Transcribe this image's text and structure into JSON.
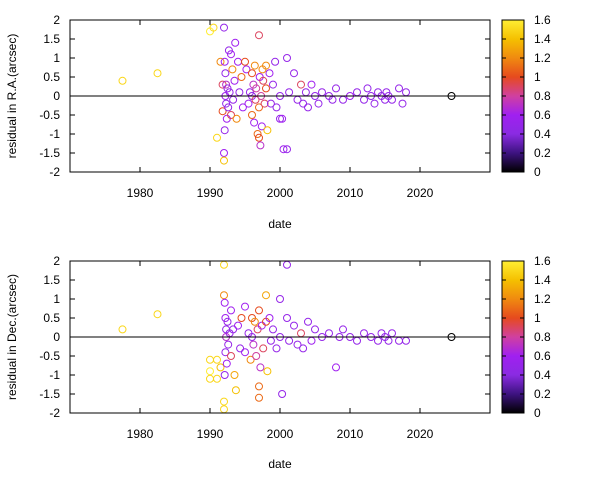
{
  "chart_data": [
    {
      "type": "scatter",
      "title": "",
      "xlabel": "date",
      "ylabel": "residual in R.A.(arcsec)",
      "xlim": [
        1970,
        2030
      ],
      "ylim": [
        -2,
        2
      ],
      "x_ticks": [
        1980,
        1990,
        2000,
        2010,
        2020
      ],
      "y_ticks": [
        -2,
        -1.5,
        -1,
        -0.5,
        0,
        0.5,
        1,
        1.5,
        2
      ],
      "zero_line": true,
      "colorbar": {
        "min": 0,
        "max": 1.6,
        "ticks": [
          0,
          0.2,
          0.4,
          0.6,
          0.8,
          1,
          1.2,
          1.4,
          1.6
        ],
        "stops": [
          "#000000",
          "#3d1380",
          "#8a2be2",
          "#a020f0",
          "#d040a0",
          "#e64a1e",
          "#f08a10",
          "#f5c000",
          "#ffee33"
        ]
      },
      "points": [
        {
          "x": 1977.5,
          "y": 0.4,
          "c": 1.5
        },
        {
          "x": 1982.5,
          "y": 0.6,
          "c": 1.5
        },
        {
          "x": 1990.0,
          "y": 1.7,
          "c": 1.6
        },
        {
          "x": 1990.5,
          "y": 1.8,
          "c": 1.5
        },
        {
          "x": 1991.0,
          "y": -1.1,
          "c": 1.5
        },
        {
          "x": 1991.5,
          "y": 0.9,
          "c": 1.2
        },
        {
          "x": 1991.8,
          "y": 0.3,
          "c": 0.9
        },
        {
          "x": 1991.8,
          "y": -0.4,
          "c": 1.0
        },
        {
          "x": 1992.0,
          "y": 1.8,
          "c": 0.5
        },
        {
          "x": 1992.0,
          "y": -1.5,
          "c": 0.6
        },
        {
          "x": 1992.0,
          "y": -1.7,
          "c": 1.4
        },
        {
          "x": 1992.1,
          "y": 0.9,
          "c": 0.6
        },
        {
          "x": 1992.1,
          "y": -0.9,
          "c": 0.5
        },
        {
          "x": 1992.2,
          "y": 0.6,
          "c": 0.5
        },
        {
          "x": 1992.2,
          "y": 0.0,
          "c": 0.6
        },
        {
          "x": 1992.3,
          "y": -0.2,
          "c": 0.5
        },
        {
          "x": 1992.3,
          "y": 0.3,
          "c": 0.7
        },
        {
          "x": 1992.4,
          "y": -0.6,
          "c": 0.6
        },
        {
          "x": 1992.5,
          "y": 0.2,
          "c": 0.5
        },
        {
          "x": 1992.6,
          "y": -0.3,
          "c": 0.5
        },
        {
          "x": 1992.7,
          "y": 1.2,
          "c": 0.5
        },
        {
          "x": 1992.8,
          "y": 0.1,
          "c": 0.5
        },
        {
          "x": 1993.0,
          "y": 1.1,
          "c": 0.6
        },
        {
          "x": 1993.0,
          "y": -0.5,
          "c": 0.9
        },
        {
          "x": 1993.2,
          "y": 0.7,
          "c": 1.2
        },
        {
          "x": 1993.3,
          "y": -0.1,
          "c": 0.5
        },
        {
          "x": 1993.5,
          "y": 0.4,
          "c": 0.6
        },
        {
          "x": 1993.6,
          "y": 1.4,
          "c": 0.6
        },
        {
          "x": 1993.8,
          "y": -0.6,
          "c": 1.2
        },
        {
          "x": 1994.0,
          "y": 0.9,
          "c": 0.6
        },
        {
          "x": 1994.2,
          "y": 0.1,
          "c": 0.5
        },
        {
          "x": 1994.5,
          "y": 0.5,
          "c": 1.1
        },
        {
          "x": 1994.7,
          "y": -0.3,
          "c": 0.6
        },
        {
          "x": 1995.0,
          "y": 0.9,
          "c": 1.0
        },
        {
          "x": 1995.2,
          "y": 0.7,
          "c": 0.6
        },
        {
          "x": 1995.5,
          "y": -0.2,
          "c": 0.6
        },
        {
          "x": 1995.7,
          "y": 0.1,
          "c": 0.5
        },
        {
          "x": 1996.0,
          "y": 0.6,
          "c": 1.0
        },
        {
          "x": 1996.0,
          "y": -0.5,
          "c": 1.1
        },
        {
          "x": 1996.0,
          "y": 0.0,
          "c": 0.5
        },
        {
          "x": 1996.2,
          "y": 0.3,
          "c": 0.7
        },
        {
          "x": 1996.3,
          "y": -0.7,
          "c": 0.6
        },
        {
          "x": 1996.4,
          "y": 0.8,
          "c": 1.2
        },
        {
          "x": 1996.5,
          "y": -0.1,
          "c": 0.9
        },
        {
          "x": 1996.6,
          "y": 0.2,
          "c": 0.8
        },
        {
          "x": 1996.8,
          "y": -1.0,
          "c": 1.1
        },
        {
          "x": 1997.0,
          "y": 1.6,
          "c": 0.9
        },
        {
          "x": 1997.0,
          "y": -0.3,
          "c": 1.1
        },
        {
          "x": 1997.0,
          "y": -1.1,
          "c": 1.0
        },
        {
          "x": 1997.1,
          "y": 0.5,
          "c": 0.6
        },
        {
          "x": 1997.2,
          "y": -1.3,
          "c": 0.7
        },
        {
          "x": 1997.3,
          "y": 0.0,
          "c": 0.8
        },
        {
          "x": 1997.4,
          "y": -0.8,
          "c": 0.6
        },
        {
          "x": 1997.5,
          "y": 0.7,
          "c": 1.2
        },
        {
          "x": 1997.6,
          "y": 0.4,
          "c": 0.9
        },
        {
          "x": 1997.8,
          "y": -0.2,
          "c": 0.9
        },
        {
          "x": 1998.0,
          "y": 0.8,
          "c": 1.2
        },
        {
          "x": 1998.0,
          "y": 0.2,
          "c": 1.0
        },
        {
          "x": 1998.2,
          "y": -0.9,
          "c": 1.4
        },
        {
          "x": 1998.5,
          "y": 0.6,
          "c": 0.6
        },
        {
          "x": 1998.7,
          "y": -0.2,
          "c": 0.5
        },
        {
          "x": 1999.0,
          "y": 0.3,
          "c": 0.5
        },
        {
          "x": 1999.3,
          "y": 0.9,
          "c": 0.5
        },
        {
          "x": 1999.5,
          "y": -0.3,
          "c": 0.5
        },
        {
          "x": 2000.0,
          "y": 0.0,
          "c": 0.5
        },
        {
          "x": 2000.0,
          "y": -0.6,
          "c": 0.5
        },
        {
          "x": 2000.3,
          "y": -0.6,
          "c": 0.6
        },
        {
          "x": 2000.5,
          "y": -1.4,
          "c": 0.6
        },
        {
          "x": 2001.0,
          "y": 1.0,
          "c": 0.5
        },
        {
          "x": 2001.0,
          "y": -1.4,
          "c": 0.5
        },
        {
          "x": 2001.3,
          "y": 0.1,
          "c": 0.5
        },
        {
          "x": 2002.0,
          "y": 0.6,
          "c": 0.5
        },
        {
          "x": 2002.5,
          "y": -0.1,
          "c": 0.5
        },
        {
          "x": 2003.0,
          "y": 0.3,
          "c": 0.9
        },
        {
          "x": 2003.3,
          "y": -0.2,
          "c": 0.5
        },
        {
          "x": 2003.7,
          "y": 0.1,
          "c": 0.5
        },
        {
          "x": 2004.0,
          "y": -0.3,
          "c": 0.5
        },
        {
          "x": 2004.5,
          "y": 0.3,
          "c": 0.6
        },
        {
          "x": 2005.0,
          "y": 0.0,
          "c": 0.5
        },
        {
          "x": 2005.5,
          "y": -0.2,
          "c": 0.5
        },
        {
          "x": 2006.0,
          "y": 0.1,
          "c": 0.5
        },
        {
          "x": 2007.0,
          "y": 0.0,
          "c": 0.5
        },
        {
          "x": 2007.5,
          "y": -0.1,
          "c": 0.5
        },
        {
          "x": 2008.0,
          "y": 0.2,
          "c": 0.5
        },
        {
          "x": 2009.0,
          "y": -0.1,
          "c": 0.5
        },
        {
          "x": 2010.0,
          "y": 0.0,
          "c": 0.6
        },
        {
          "x": 2011.0,
          "y": 0.1,
          "c": 0.5
        },
        {
          "x": 2012.0,
          "y": -0.1,
          "c": 0.5
        },
        {
          "x": 2012.5,
          "y": 0.2,
          "c": 0.5
        },
        {
          "x": 2013.0,
          "y": 0.0,
          "c": 0.5
        },
        {
          "x": 2013.5,
          "y": -0.2,
          "c": 0.5
        },
        {
          "x": 2014.0,
          "y": 0.1,
          "c": 0.5
        },
        {
          "x": 2014.5,
          "y": 0.0,
          "c": 0.5
        },
        {
          "x": 2015.0,
          "y": -0.1,
          "c": 0.5
        },
        {
          "x": 2015.2,
          "y": 0.1,
          "c": 0.5
        },
        {
          "x": 2015.5,
          "y": 0.0,
          "c": 0.5
        },
        {
          "x": 2016.0,
          "y": -0.1,
          "c": 0.5
        },
        {
          "x": 2017.0,
          "y": 0.2,
          "c": 0.5
        },
        {
          "x": 2017.5,
          "y": -0.2,
          "c": 0.5
        },
        {
          "x": 2018.0,
          "y": 0.1,
          "c": 0.5
        },
        {
          "x": 2024.5,
          "y": 0.0,
          "c": 0.0
        }
      ]
    },
    {
      "type": "scatter",
      "title": "",
      "xlabel": "date",
      "ylabel": "residual in Dec.(arcsec)",
      "xlim": [
        1970,
        2030
      ],
      "ylim": [
        -2,
        2
      ],
      "x_ticks": [
        1980,
        1990,
        2000,
        2010,
        2020
      ],
      "y_ticks": [
        -2,
        -1.5,
        -1,
        -0.5,
        0,
        0.5,
        1,
        1.5,
        2
      ],
      "zero_line": true,
      "colorbar": {
        "min": 0,
        "max": 1.6,
        "ticks": [
          0,
          0.2,
          0.4,
          0.6,
          0.8,
          1,
          1.2,
          1.4,
          1.6
        ],
        "stops": [
          "#000000",
          "#3d1380",
          "#8a2be2",
          "#a020f0",
          "#d040a0",
          "#e64a1e",
          "#f08a10",
          "#f5c000",
          "#ffee33"
        ]
      },
      "points": [
        {
          "x": 1977.5,
          "y": 0.2,
          "c": 1.5
        },
        {
          "x": 1982.5,
          "y": 0.6,
          "c": 1.5
        },
        {
          "x": 1990.0,
          "y": -0.6,
          "c": 1.5
        },
        {
          "x": 1990.0,
          "y": -0.9,
          "c": 1.6
        },
        {
          "x": 1990.0,
          "y": -1.1,
          "c": 1.5
        },
        {
          "x": 1991.0,
          "y": -0.6,
          "c": 1.5
        },
        {
          "x": 1991.0,
          "y": -1.1,
          "c": 1.5
        },
        {
          "x": 1991.5,
          "y": -0.8,
          "c": 1.4
        },
        {
          "x": 1992.0,
          "y": 1.9,
          "c": 1.5
        },
        {
          "x": 1992.0,
          "y": 1.1,
          "c": 1.2
        },
        {
          "x": 1992.0,
          "y": -1.7,
          "c": 1.5
        },
        {
          "x": 1992.0,
          "y": -1.9,
          "c": 1.5
        },
        {
          "x": 1992.1,
          "y": 0.9,
          "c": 0.6
        },
        {
          "x": 1992.1,
          "y": -1.0,
          "c": 0.5
        },
        {
          "x": 1992.2,
          "y": 0.5,
          "c": 0.6
        },
        {
          "x": 1992.2,
          "y": -0.4,
          "c": 0.5
        },
        {
          "x": 1992.3,
          "y": 0.2,
          "c": 0.5
        },
        {
          "x": 1992.3,
          "y": 0.0,
          "c": 0.7
        },
        {
          "x": 1992.4,
          "y": -0.7,
          "c": 0.6
        },
        {
          "x": 1992.5,
          "y": 0.4,
          "c": 0.5
        },
        {
          "x": 1992.6,
          "y": -0.2,
          "c": 0.5
        },
        {
          "x": 1992.8,
          "y": 0.1,
          "c": 0.5
        },
        {
          "x": 1993.0,
          "y": 0.7,
          "c": 0.6
        },
        {
          "x": 1993.0,
          "y": -0.5,
          "c": 0.9
        },
        {
          "x": 1993.3,
          "y": 0.2,
          "c": 0.5
        },
        {
          "x": 1993.5,
          "y": -1.0,
          "c": 1.3
        },
        {
          "x": 1993.7,
          "y": -1.4,
          "c": 1.4
        },
        {
          "x": 1994.0,
          "y": 0.3,
          "c": 0.6
        },
        {
          "x": 1994.3,
          "y": -0.3,
          "c": 0.5
        },
        {
          "x": 1994.5,
          "y": 0.5,
          "c": 1.0
        },
        {
          "x": 1995.0,
          "y": 0.8,
          "c": 0.6
        },
        {
          "x": 1995.0,
          "y": -0.4,
          "c": 0.6
        },
        {
          "x": 1995.5,
          "y": 0.1,
          "c": 0.5
        },
        {
          "x": 1995.8,
          "y": -0.6,
          "c": 1.2
        },
        {
          "x": 1996.0,
          "y": 0.5,
          "c": 1.0
        },
        {
          "x": 1996.0,
          "y": 0.0,
          "c": 0.5
        },
        {
          "x": 1996.2,
          "y": -0.2,
          "c": 0.7
        },
        {
          "x": 1996.4,
          "y": 0.4,
          "c": 1.2
        },
        {
          "x": 1996.6,
          "y": -0.5,
          "c": 0.8
        },
        {
          "x": 1996.8,
          "y": 0.2,
          "c": 0.9
        },
        {
          "x": 1997.0,
          "y": 0.7,
          "c": 1.0
        },
        {
          "x": 1997.0,
          "y": -1.3,
          "c": 1.1
        },
        {
          "x": 1997.0,
          "y": -1.6,
          "c": 1.1
        },
        {
          "x": 1997.2,
          "y": -0.8,
          "c": 0.7
        },
        {
          "x": 1997.4,
          "y": 0.3,
          "c": 0.6
        },
        {
          "x": 1997.6,
          "y": -0.3,
          "c": 0.9
        },
        {
          "x": 1998.0,
          "y": 1.1,
          "c": 1.3
        },
        {
          "x": 1998.0,
          "y": 0.4,
          "c": 1.0
        },
        {
          "x": 1998.2,
          "y": -0.9,
          "c": 1.4
        },
        {
          "x": 1998.5,
          "y": 0.5,
          "c": 0.6
        },
        {
          "x": 1998.7,
          "y": -0.1,
          "c": 0.5
        },
        {
          "x": 1999.0,
          "y": 0.2,
          "c": 0.5
        },
        {
          "x": 1999.5,
          "y": -0.3,
          "c": 0.5
        },
        {
          "x": 2000.0,
          "y": 1.0,
          "c": 0.5
        },
        {
          "x": 2000.0,
          "y": 0.0,
          "c": 0.5
        },
        {
          "x": 2000.3,
          "y": -1.5,
          "c": 0.5
        },
        {
          "x": 2001.0,
          "y": 1.9,
          "c": 0.5
        },
        {
          "x": 2001.0,
          "y": 0.5,
          "c": 0.5
        },
        {
          "x": 2001.3,
          "y": -0.1,
          "c": 0.5
        },
        {
          "x": 2002.0,
          "y": 0.3,
          "c": 0.5
        },
        {
          "x": 2002.5,
          "y": -0.2,
          "c": 0.5
        },
        {
          "x": 2003.0,
          "y": 0.1,
          "c": 0.9
        },
        {
          "x": 2003.3,
          "y": -0.3,
          "c": 0.5
        },
        {
          "x": 2004.0,
          "y": 0.4,
          "c": 0.5
        },
        {
          "x": 2004.5,
          "y": -0.1,
          "c": 0.6
        },
        {
          "x": 2005.0,
          "y": 0.2,
          "c": 0.5
        },
        {
          "x": 2006.0,
          "y": 0.0,
          "c": 0.5
        },
        {
          "x": 2007.0,
          "y": 0.1,
          "c": 0.5
        },
        {
          "x": 2008.0,
          "y": -0.8,
          "c": 0.6
        },
        {
          "x": 2008.5,
          "y": 0.0,
          "c": 0.5
        },
        {
          "x": 2009.0,
          "y": 0.2,
          "c": 0.5
        },
        {
          "x": 2010.0,
          "y": 0.0,
          "c": 0.5
        },
        {
          "x": 2011.0,
          "y": -0.1,
          "c": 0.5
        },
        {
          "x": 2012.0,
          "y": 0.1,
          "c": 0.5
        },
        {
          "x": 2013.0,
          "y": 0.0,
          "c": 0.5
        },
        {
          "x": 2014.0,
          "y": -0.1,
          "c": 0.5
        },
        {
          "x": 2014.5,
          "y": 0.1,
          "c": 0.5
        },
        {
          "x": 2015.0,
          "y": 0.0,
          "c": 0.5
        },
        {
          "x": 2015.5,
          "y": -0.1,
          "c": 0.5
        },
        {
          "x": 2016.0,
          "y": 0.1,
          "c": 0.5
        },
        {
          "x": 2017.0,
          "y": -0.1,
          "c": 0.5
        },
        {
          "x": 2018.0,
          "y": -0.1,
          "c": 0.5
        },
        {
          "x": 2024.5,
          "y": 0.0,
          "c": 0.0
        }
      ]
    }
  ]
}
